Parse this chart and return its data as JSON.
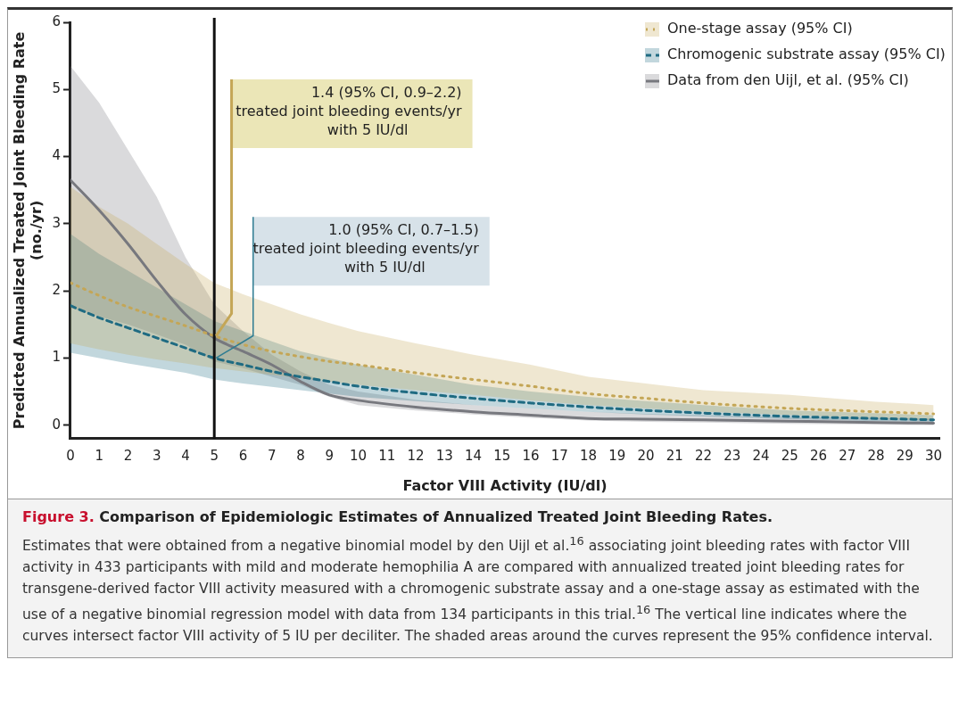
{
  "chart_data": {
    "type": "line",
    "title": "Figure 3. Comparison of Epidemiologic Estimates of Annualized Treated Joint Bleeding Rates.",
    "xlabel": "Factor VIII Activity (IU/dl)",
    "ylabel": "Predicted Annualized Treated Joint Bleeding Rate\n(no./yr)",
    "x": [
      0,
      1,
      2,
      3,
      4,
      5,
      6,
      7,
      8,
      9,
      10,
      12,
      14,
      16,
      18,
      20,
      22,
      25,
      28,
      30
    ],
    "series": [
      {
        "name": "One-stage assay (95% CI)",
        "color": "#c4a656",
        "line_style": "dotted",
        "values": [
          2.12,
          1.93,
          1.76,
          1.62,
          1.48,
          1.33,
          1.2,
          1.1,
          1.02,
          0.95,
          0.9,
          0.78,
          0.68,
          0.58,
          0.47,
          0.4,
          0.33,
          0.25,
          0.2,
          0.17
        ],
        "upper": [
          3.55,
          3.25,
          3.0,
          2.7,
          2.4,
          2.12,
          1.95,
          1.8,
          1.65,
          1.52,
          1.4,
          1.22,
          1.05,
          0.9,
          0.72,
          0.62,
          0.52,
          0.45,
          0.35,
          0.3
        ],
        "lower": [
          1.22,
          1.13,
          1.05,
          0.98,
          0.92,
          0.85,
          0.8,
          0.75,
          0.7,
          0.65,
          0.6,
          0.52,
          0.45,
          0.37,
          0.3,
          0.25,
          0.2,
          0.15,
          0.1,
          0.08
        ]
      },
      {
        "name": "Chromogenic substrate assay (95% CI)",
        "color": "#1f6b82",
        "line_style": "dashed",
        "values": [
          1.78,
          1.6,
          1.45,
          1.3,
          1.15,
          1.0,
          0.9,
          0.8,
          0.72,
          0.65,
          0.58,
          0.48,
          0.4,
          0.33,
          0.27,
          0.22,
          0.18,
          0.13,
          0.1,
          0.08
        ],
        "upper": [
          2.85,
          2.55,
          2.3,
          2.05,
          1.8,
          1.55,
          1.4,
          1.25,
          1.1,
          1.0,
          0.9,
          0.75,
          0.6,
          0.5,
          0.42,
          0.36,
          0.3,
          0.22,
          0.18,
          0.15
        ],
        "lower": [
          1.08,
          1.0,
          0.92,
          0.85,
          0.78,
          0.68,
          0.62,
          0.57,
          0.52,
          0.47,
          0.42,
          0.36,
          0.3,
          0.25,
          0.2,
          0.16,
          0.13,
          0.09,
          0.06,
          0.05
        ]
      },
      {
        "name": "Data from den Uijl, et al. (95% CI)",
        "color": "#77787e",
        "line_style": "solid",
        "values": [
          3.65,
          3.2,
          2.7,
          2.15,
          1.65,
          1.3,
          1.1,
          0.9,
          0.65,
          0.45,
          0.37,
          0.27,
          0.2,
          0.15,
          0.1,
          0.09,
          0.08,
          0.06,
          0.04,
          0.03
        ],
        "upper": [
          5.35,
          4.8,
          4.1,
          3.4,
          2.5,
          1.8,
          1.4,
          1.05,
          0.8,
          0.6,
          0.5,
          0.38,
          0.3,
          0.25,
          0.2,
          0.17,
          0.15,
          0.12,
          0.11,
          0.1
        ],
        "lower": [
          1.75,
          1.62,
          1.5,
          1.35,
          1.2,
          0.95,
          0.85,
          0.72,
          0.6,
          0.42,
          0.3,
          0.22,
          0.16,
          0.11,
          0.07,
          0.05,
          0.04,
          0.02,
          0.01,
          0.0
        ]
      }
    ],
    "xlim": [
      0,
      30.2
    ],
    "ylim": [
      -0.2,
      6
    ],
    "xticks": [
      0,
      1,
      2,
      3,
      4,
      5,
      6,
      7,
      8,
      9,
      10,
      11,
      12,
      13,
      14,
      15,
      16,
      17,
      18,
      19,
      20,
      21,
      22,
      23,
      24,
      25,
      26,
      27,
      28,
      29,
      30
    ],
    "yticks": [
      0,
      1,
      2,
      3,
      4,
      5,
      6
    ],
    "ref_lines": [
      {
        "axis": "x",
        "value": 5,
        "color": "#111111"
      }
    ],
    "annotations": [
      {
        "text": "1.4 (95% CI, 0.9–2.2)\ntreated joint bleeding events/yr\nwith 5 IU/dl",
        "x": 5,
        "y": 1.33
      },
      {
        "text": "1.0 (95% CI, 0.7–1.5)\ntreated joint bleeding events/yr\nwith 5 IU/dl",
        "x": 5,
        "y": 1.0
      },
      "Estimates that were obtained from a negative binomial model by den Uijl et al.$^{16}$ associating joint bleeding rates with factor VIII activity in 433 participants with mild and moderate hemophilia A are compared with annualized treated joint bleeding rates for transgene-derived factor VIII activity measured with a chromogenic substrate assay and a one-stage assay as estimated with the use of a negative binomial regression model with data from 134 participants in this trial.$^{16}$ The vertical line indicates where the curves intersect factor VIII activity of 5 IU per deciliter. The shaded areas around the curves represent the 95% confidence interval."
    ],
    "legend": "top right",
    "grid": false
  }
}
